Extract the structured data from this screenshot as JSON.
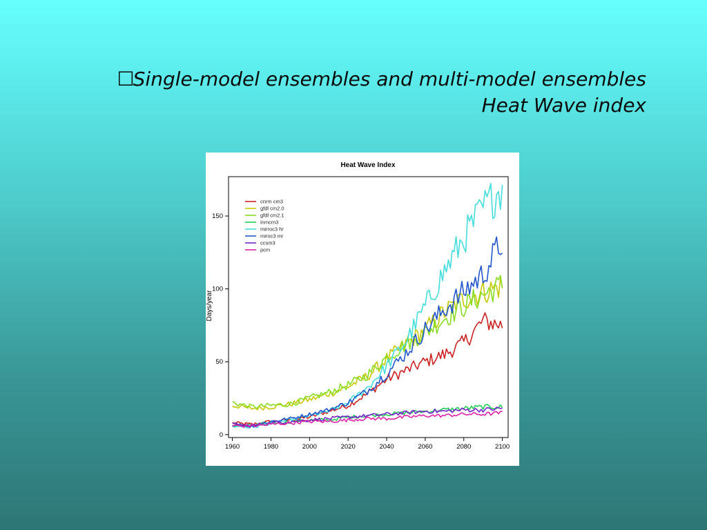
{
  "slide": {
    "bullet": "☐",
    "title_line1": "Single-model ensembles and multi-model ensembles",
    "title_line2": "Heat Wave index"
  },
  "chart_data": {
    "type": "line",
    "title": "Heat Wave Index",
    "xlabel": "",
    "ylabel": "Days/year",
    "xlim": [
      1958,
      2103
    ],
    "ylim": [
      -2,
      177
    ],
    "xticks": [
      1960,
      1980,
      2000,
      2020,
      2040,
      2060,
      2080,
      2100
    ],
    "yticks": [
      0,
      50,
      100,
      150
    ],
    "grid": false,
    "legend_position": "top-left",
    "x_anchors": [
      1960,
      1970,
      1980,
      1990,
      2000,
      2010,
      2020,
      2030,
      2040,
      2050,
      2060,
      2070,
      2080,
      2090,
      2100
    ],
    "series": [
      {
        "name": "cnrm cm3",
        "color": "#cc2222",
        "values": [
          8,
          7,
          9,
          10,
          12,
          16,
          20,
          28,
          38,
          44,
          50,
          55,
          63,
          78,
          75
        ]
      },
      {
        "name": "gfdl cm2.0",
        "color": "#c8c800",
        "values": [
          20,
          18,
          19,
          21,
          24,
          28,
          33,
          40,
          52,
          62,
          72,
          84,
          93,
          98,
          102
        ]
      },
      {
        "name": "gfdl cm2.1",
        "color": "#88dd22",
        "values": [
          22,
          19,
          20,
          21,
          25,
          29,
          34,
          41,
          53,
          62,
          70,
          80,
          88,
          96,
          103
        ]
      },
      {
        "name": "inmcm3",
        "color": "#22cc55",
        "values": [
          6,
          6,
          8,
          9,
          10,
          10,
          12,
          13,
          14,
          15,
          16,
          17,
          18,
          19,
          19
        ]
      },
      {
        "name": "mirroc3 hr",
        "color": "#44dddd",
        "values": [
          6,
          5,
          8,
          10,
          13,
          16,
          22,
          32,
          47,
          64,
          88,
          112,
          135,
          155,
          170
        ]
      },
      {
        "name": "miroc3 mr",
        "color": "#2255cc",
        "values": [
          7,
          6,
          9,
          11,
          14,
          17,
          22,
          30,
          42,
          56,
          72,
          86,
          98,
          110,
          133
        ]
      },
      {
        "name": "ccsm3",
        "color": "#7722cc",
        "values": [
          7,
          6,
          8,
          9,
          10,
          11,
          12,
          13,
          14,
          15,
          16,
          16,
          17,
          17,
          18
        ]
      },
      {
        "name": "pcm",
        "color": "#dd22aa",
        "values": [
          6,
          6,
          7,
          8,
          9,
          9,
          10,
          11,
          11,
          12,
          13,
          13,
          14,
          14,
          15
        ]
      }
    ]
  }
}
